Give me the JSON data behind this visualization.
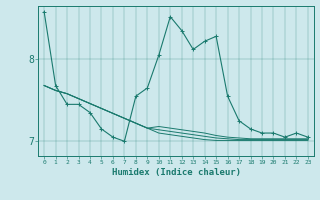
{
  "xlabel": "Humidex (Indice chaleur)",
  "background_color": "#cde8ec",
  "line_color": "#1a7a6e",
  "x_ticks": [
    0,
    1,
    2,
    3,
    4,
    5,
    6,
    7,
    8,
    9,
    10,
    11,
    12,
    13,
    14,
    15,
    16,
    17,
    18,
    19,
    20,
    21,
    22,
    23
  ],
  "ylim": [
    6.82,
    8.65
  ],
  "yticks": [
    7.0,
    8.0
  ],
  "series": [
    [
      8.58,
      7.68,
      7.45,
      7.45,
      7.35,
      7.15,
      7.05,
      7.0,
      7.55,
      7.65,
      8.05,
      8.52,
      8.35,
      8.12,
      8.22,
      8.28,
      7.55,
      7.25,
      7.15,
      7.1,
      7.1,
      7.05,
      7.1,
      7.05
    ],
    [
      7.68,
      7.62,
      7.58,
      7.52,
      7.46,
      7.4,
      7.34,
      7.28,
      7.22,
      7.16,
      7.1,
      7.08,
      7.06,
      7.04,
      7.02,
      7.01,
      7.01,
      7.01,
      7.01,
      7.01,
      7.01,
      7.01,
      7.01,
      7.01
    ],
    [
      7.68,
      7.62,
      7.58,
      7.52,
      7.46,
      7.4,
      7.34,
      7.28,
      7.22,
      7.16,
      7.14,
      7.12,
      7.1,
      7.08,
      7.06,
      7.04,
      7.03,
      7.02,
      7.02,
      7.02,
      7.02,
      7.02,
      7.02,
      7.02
    ],
    [
      7.68,
      7.62,
      7.58,
      7.52,
      7.46,
      7.4,
      7.34,
      7.28,
      7.22,
      7.16,
      7.18,
      7.16,
      7.14,
      7.12,
      7.1,
      7.07,
      7.05,
      7.04,
      7.03,
      7.03,
      7.03,
      7.03,
      7.03,
      7.03
    ]
  ]
}
